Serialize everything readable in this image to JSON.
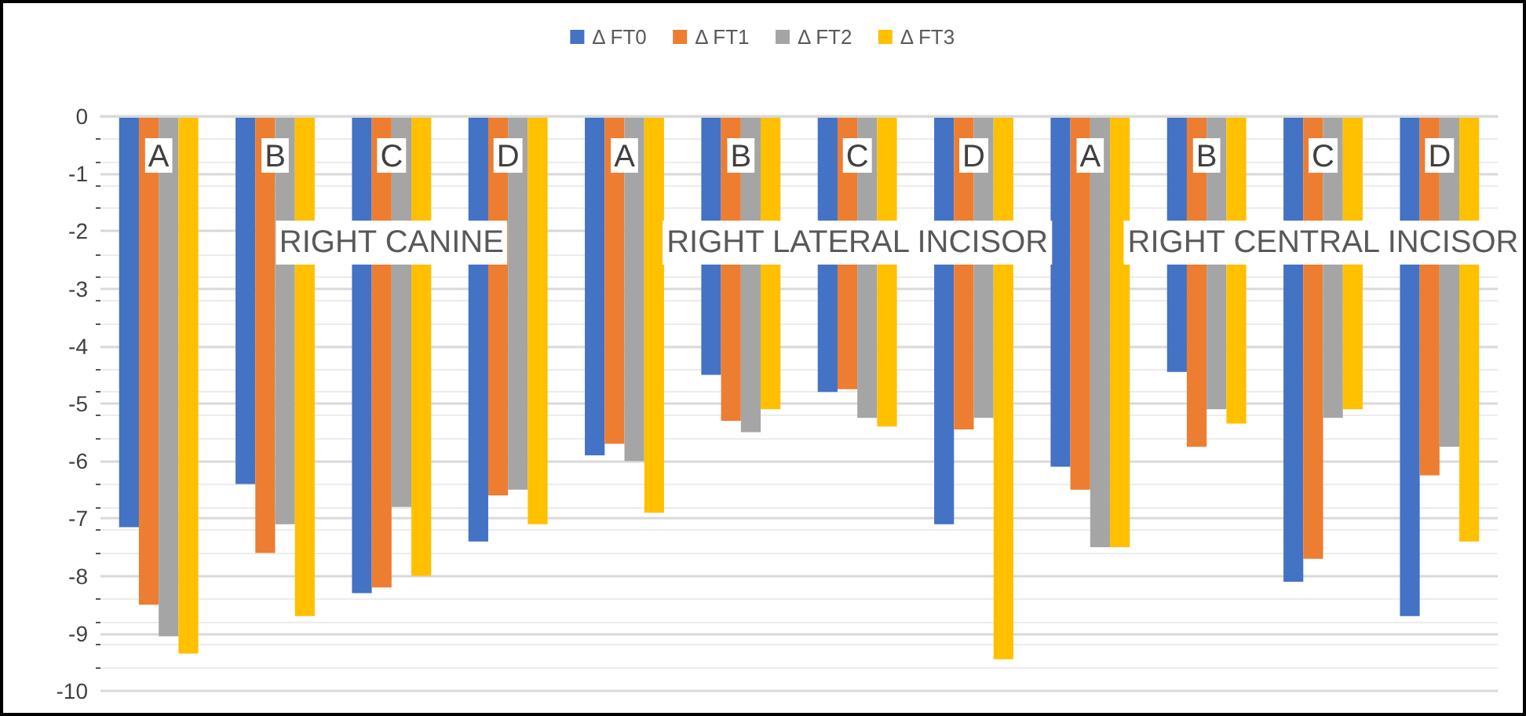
{
  "chart_data": {
    "type": "bar",
    "categories": [
      "A",
      "B",
      "C",
      "D",
      "A",
      "B",
      "C",
      "D",
      "A",
      "B",
      "C",
      "D"
    ],
    "series": [
      {
        "name": "Δ FT0",
        "color": "#4472c4",
        "values": [
          -7.15,
          -6.4,
          -8.3,
          -7.4,
          -5.9,
          -4.5,
          -4.8,
          -7.1,
          -6.1,
          -4.45,
          -8.1,
          -8.7
        ]
      },
      {
        "name": "Δ FT1",
        "color": "#ed7d31",
        "values": [
          -8.5,
          -7.6,
          -8.2,
          -6.6,
          -5.7,
          -5.3,
          -4.75,
          -5.45,
          -6.5,
          -5.75,
          -7.7,
          -6.25
        ]
      },
      {
        "name": "Δ FT2",
        "color": "#a5a5a5",
        "values": [
          -9.05,
          -7.1,
          -6.8,
          -6.5,
          -6.0,
          -5.5,
          -5.25,
          -5.25,
          -7.5,
          -5.1,
          -5.25,
          -5.75
        ]
      },
      {
        "name": "Δ FT3",
        "color": "#ffc000",
        "values": [
          -9.35,
          -8.7,
          -8.0,
          -7.1,
          -6.9,
          -5.1,
          -5.4,
          -9.45,
          -7.5,
          -5.35,
          -5.1,
          -7.4
        ]
      }
    ],
    "annotations": [
      "RIGHT CANINE",
      "RIGHT LATERAL INCISOR",
      "RIGHT CENTRAL INCISOR"
    ],
    "ylim": [
      -10,
      0
    ],
    "yticks": [
      -10,
      -9,
      -8,
      -7,
      -6,
      -5,
      -4,
      -3,
      -2,
      -1,
      0
    ],
    "grid": "y",
    "legend": "top"
  }
}
